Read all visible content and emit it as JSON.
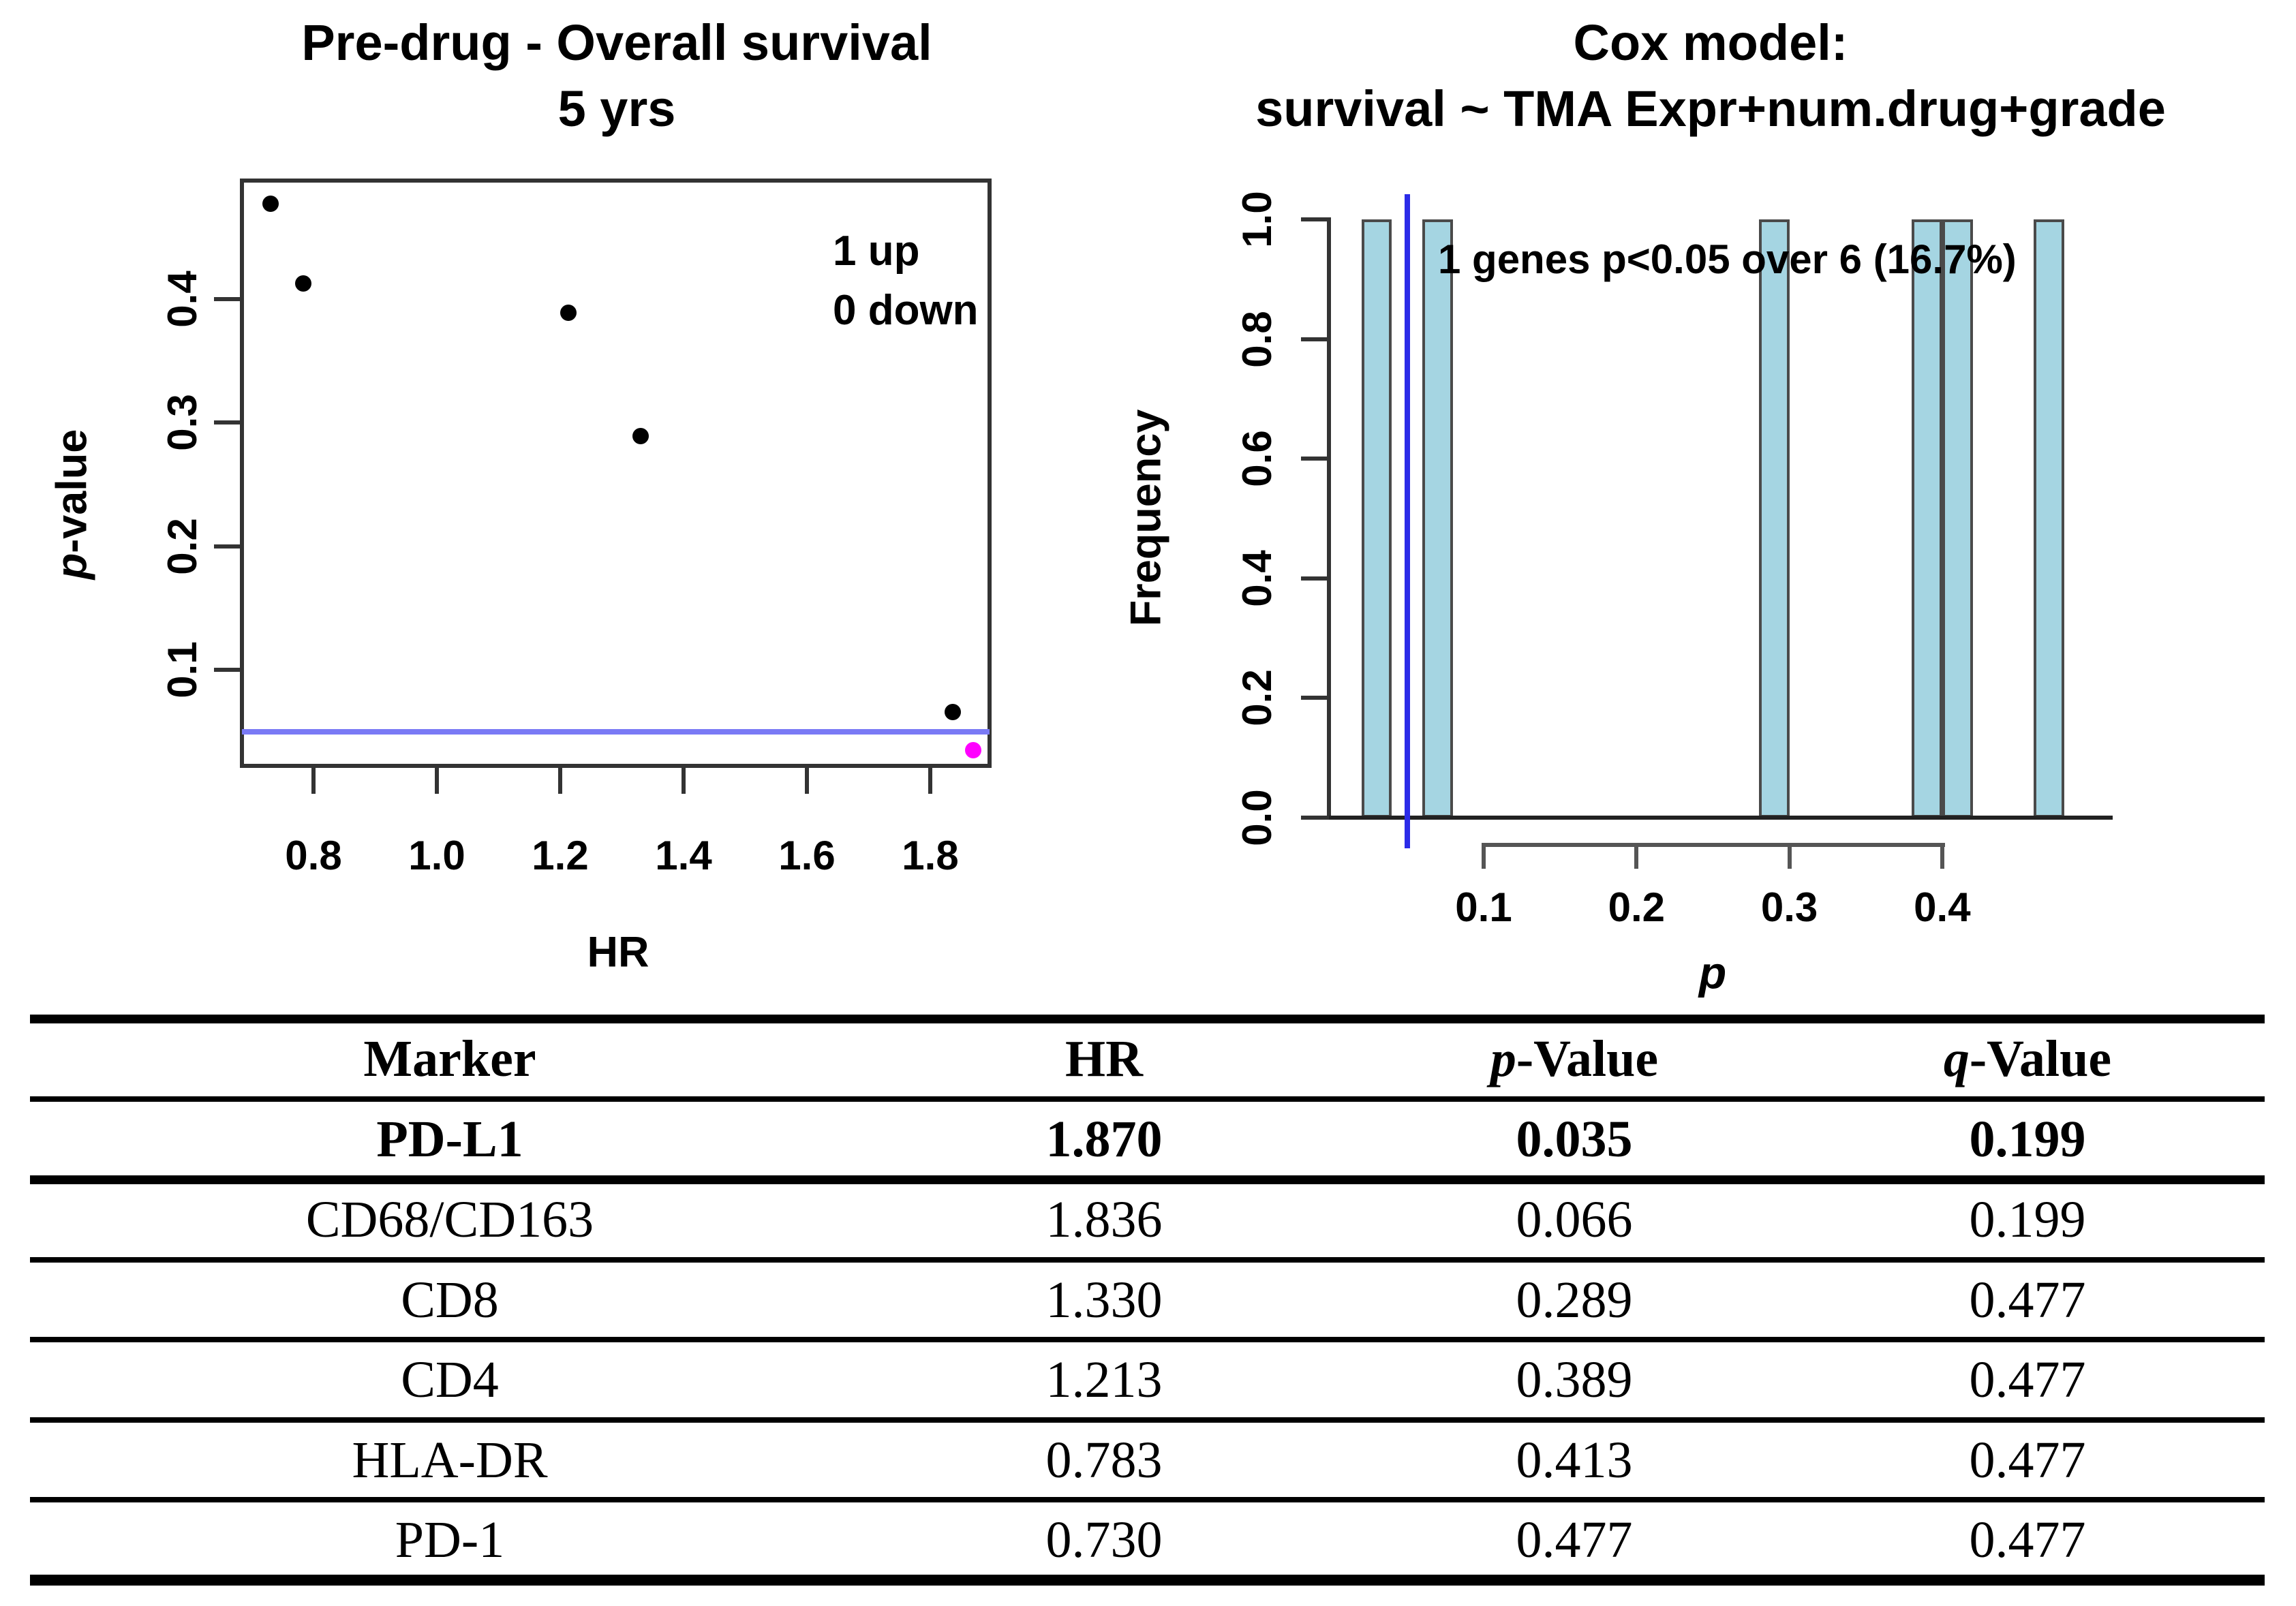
{
  "figure": {
    "left_plot": {
      "title_line1": "Pre-drug - Overall survival",
      "title_line2": "5 yrs",
      "xlabel": "HR",
      "ylabel": "p-value",
      "ylabel_italic_first": true,
      "annotation_line1": "1 up",
      "annotation_line2": "0 down"
    },
    "right_plot": {
      "title_line1": "Cox model:",
      "title_line2": "survival ~ TMA Expr+num.drug+grade",
      "xlabel": "p",
      "ylabel": "Frequency",
      "annotation": "1 genes p<0.05 over 6 (16.7%)"
    }
  },
  "chart_data": [
    {
      "type": "scatter",
      "title": "Pre-drug - Overall survival 5 yrs",
      "xlabel": "HR",
      "ylabel": "p-value",
      "xlim": [
        0.685,
        1.915
      ],
      "ylim": [
        0.017,
        0.495
      ],
      "x_ticks": [
        0.8,
        1.0,
        1.2,
        1.4,
        1.6,
        1.8
      ],
      "y_ticks": [
        0.1,
        0.2,
        0.3,
        0.4
      ],
      "grid": false,
      "legend_position": "top-right-inside",
      "annotations": [
        "1 up",
        "0 down"
      ],
      "significance_line": {
        "y": 0.05,
        "color": "#7a7af5"
      },
      "points": [
        {
          "marker": "PD-L1",
          "x": 1.87,
          "y": 0.035,
          "color": "#ff00ff"
        },
        {
          "marker": "CD68/CD163",
          "x": 1.836,
          "y": 0.066,
          "color": "#000000"
        },
        {
          "marker": "CD8",
          "x": 1.33,
          "y": 0.289,
          "color": "#000000"
        },
        {
          "marker": "CD4",
          "x": 1.213,
          "y": 0.389,
          "color": "#000000"
        },
        {
          "marker": "HLA-DR",
          "x": 0.783,
          "y": 0.413,
          "color": "#000000"
        },
        {
          "marker": "PD-1",
          "x": 0.73,
          "y": 0.477,
          "color": "#000000"
        }
      ]
    },
    {
      "type": "bar",
      "subtype": "histogram",
      "title": "Cox model: survival ~ TMA Expr+num.drug+grade",
      "xlabel": "p",
      "ylabel": "Frequency",
      "xlim": [
        0.0,
        0.5
      ],
      "ylim": [
        0.0,
        1.0
      ],
      "x_ticks": [
        0.1,
        0.2,
        0.3,
        0.4
      ],
      "y_ticks": [
        0.0,
        0.2,
        0.4,
        0.6,
        0.8,
        1.0
      ],
      "grid": false,
      "annotation": "1 genes p<0.05 over 6 (16.7%)",
      "significance_line": {
        "x": 0.05,
        "color": "#2b2be8"
      },
      "bar_fill": "#a5d5e2",
      "bar_border": "#4a4a4a",
      "bins": [
        {
          "from": 0.02,
          "to": 0.04,
          "frequency": 1
        },
        {
          "from": 0.06,
          "to": 0.08,
          "frequency": 1
        },
        {
          "from": 0.28,
          "to": 0.3,
          "frequency": 1
        },
        {
          "from": 0.38,
          "to": 0.4,
          "frequency": 1
        },
        {
          "from": 0.4,
          "to": 0.42,
          "frequency": 1
        },
        {
          "from": 0.46,
          "to": 0.48,
          "frequency": 1
        }
      ]
    }
  ],
  "table": {
    "headers": [
      {
        "text": "Marker",
        "italic_first": false
      },
      {
        "text": "HR",
        "italic_first": false
      },
      {
        "text": "p-Value",
        "italic_first": true
      },
      {
        "text": "q-Value",
        "italic_first": true
      }
    ],
    "rows": [
      {
        "marker": "PD-L1",
        "hr": "1.870",
        "p": "0.035",
        "q": "0.199",
        "bold": true
      },
      {
        "marker": "CD68/CD163",
        "hr": "1.836",
        "p": "0.066",
        "q": "0.199",
        "bold": false
      },
      {
        "marker": "CD8",
        "hr": "1.330",
        "p": "0.289",
        "q": "0.477",
        "bold": false
      },
      {
        "marker": "CD4",
        "hr": "1.213",
        "p": "0.389",
        "q": "0.477",
        "bold": false
      },
      {
        "marker": "HLA-DR",
        "hr": "0.783",
        "p": "0.413",
        "q": "0.477",
        "bold": false
      },
      {
        "marker": "PD-1",
        "hr": "0.730",
        "p": "0.477",
        "q": "0.477",
        "bold": false
      }
    ]
  },
  "colors": {
    "bar_fill": "#a5d5e2",
    "bar_border": "#4a4a4a",
    "hline_blue": "#7a7af5",
    "vline_blue": "#2b2be8",
    "magenta_point": "#ff00ff",
    "axis": "#333333",
    "text": "#000000"
  }
}
